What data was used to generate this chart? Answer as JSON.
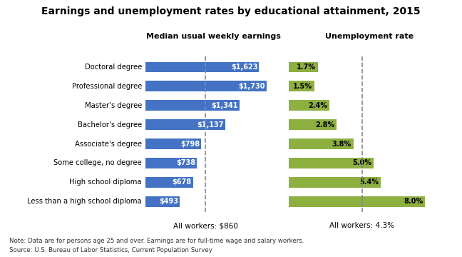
{
  "title": "Earnings and unemployment rates by educational attainment, 2015",
  "categories": [
    "Doctoral degree",
    "Professional degree",
    "Master's degree",
    "Bachelor's degree",
    "Associate's degree",
    "Some college, no degree",
    "High school diploma",
    "Less than a high school diploma"
  ],
  "earnings": [
    1623,
    1730,
    1341,
    1137,
    798,
    738,
    678,
    493
  ],
  "earnings_labels": [
    "$1,623",
    "$1,730",
    "$1,341",
    "$1,137",
    "$798",
    "$738",
    "$678",
    "$493"
  ],
  "unemployment": [
    1.7,
    1.5,
    2.4,
    2.8,
    3.8,
    5.0,
    5.4,
    8.0
  ],
  "unemployment_labels": [
    "1.7%",
    "1.5%",
    "2.4%",
    "2.8%",
    "3.8%",
    "5.0%",
    "5.4%",
    "8.0%"
  ],
  "earnings_color": "#4472C4",
  "unemployment_color": "#8DB040",
  "earnings_max": 1950,
  "unemployment_max": 9.5,
  "all_workers_earnings": 860,
  "all_workers_earnings_label": "All workers: $860",
  "all_workers_unemployment": 4.3,
  "all_workers_unemployment_label": "All workers: 4.3%",
  "left_header": "Median usual weekly earnings",
  "right_header": "Unemployment rate",
  "note_line1": "Note: Data are for persons age 25 and over. Earnings are for full-time wage and salary workers.",
  "note_line2": "Source: U.S. Bureau of Labor Statistics, Current Population Survey",
  "background_color": "#ffffff"
}
